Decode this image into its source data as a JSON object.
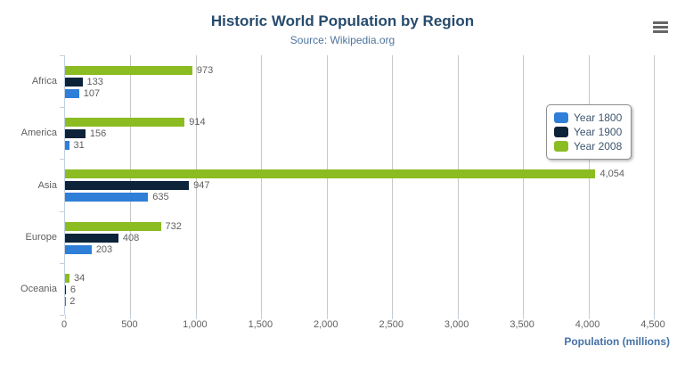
{
  "header": {
    "title": "Historic World Population by Region",
    "subtitle": "Source: Wikipedia.org"
  },
  "toolbar": {
    "menu_icon": "hamburger-menu-icon"
  },
  "x_axis": {
    "title": "Population (millions)",
    "tick_labels": [
      "0",
      "500",
      "1,000",
      "1,500",
      "2,000",
      "2,500",
      "3,000",
      "3,500",
      "4,000",
      "4,500"
    ]
  },
  "colors": {
    "title": "#274b6d",
    "subtitle": "#4d759e",
    "axis_title": "#4572a7",
    "grid_line": "#c8c8c8",
    "axis_line": "#c0d0e0",
    "data_label": "#606060",
    "legend_text": "#3e576f",
    "series_year_1800": "#2f7ed8",
    "series_year_1900": "#0d233a",
    "series_year_2008": "#8bbc21"
  },
  "legend": {
    "position": "right"
  },
  "chart_data": {
    "type": "bar",
    "orientation": "horizontal",
    "title": "Historic World Population by Region",
    "subtitle": "Source: Wikipedia.org",
    "categories": [
      "Africa",
      "America",
      "Asia",
      "Europe",
      "Oceania"
    ],
    "series": [
      {
        "name": "Year 1800",
        "color": "#2f7ed8",
        "values": [
          107,
          31,
          635,
          203,
          2
        ]
      },
      {
        "name": "Year 1900",
        "color": "#0d233a",
        "values": [
          133,
          156,
          947,
          408,
          6
        ]
      },
      {
        "name": "Year 2008",
        "color": "#8bbc21",
        "values": [
          973,
          914,
          4054,
          732,
          34
        ]
      }
    ],
    "bar_order_top_to_bottom": [
      "Year 2008",
      "Year 1900",
      "Year 1800"
    ],
    "data_labels": true,
    "xlabel": "Population (millions)",
    "ylabel": "",
    "xlim": [
      0,
      4500
    ],
    "x_ticks": [
      0,
      500,
      1000,
      1500,
      2000,
      2500,
      3000,
      3500,
      4000,
      4500
    ],
    "grid": true,
    "legend_position": "top-right"
  }
}
